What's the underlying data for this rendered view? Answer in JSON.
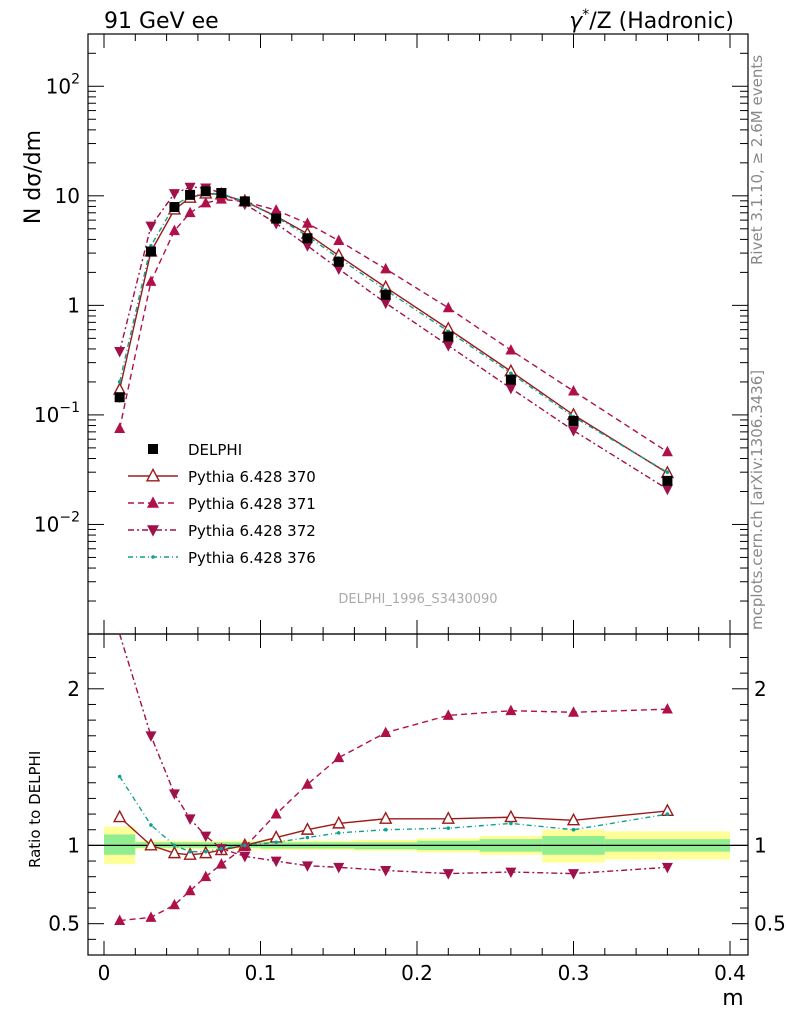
{
  "header": {
    "left_title": "91 GeV ee",
    "right_title_pre": "γ",
    "right_title_sup": "*",
    "right_title_post": "/Z (Hadronic)"
  },
  "side_text": {
    "rivet": "Rivet 3.1.10, ≥ 2.6M events",
    "mcplots": "mcplots.cern.ch [arXiv:1306.3436]"
  },
  "analysis_label": "DELPHI_1996_S3430090",
  "colors": {
    "data": "#000000",
    "p370": "#9b1b1b",
    "p371": "#b0104a",
    "p372": "#a0104a",
    "p376": "#10a090",
    "band_inner": "#90ee90",
    "band_outer": "#ffff99"
  },
  "chart_data": {
    "type": "scatter",
    "xlabel": "m",
    "ylabel": "N dσ/dm",
    "ratio_ylabel": "Ratio to DELPHI",
    "xlim": [
      0,
      0.4
    ],
    "ylim_log": [
      0.001,
      300
    ],
    "ratio_ylim": [
      0.3,
      2.35
    ],
    "y_scale": "log",
    "x_ticks": [
      "0",
      "0.1",
      "0.2",
      "0.3",
      "0.4"
    ],
    "y_ticks": [
      {
        "v": 0.01,
        "base": "10",
        "exp": "−2"
      },
      {
        "v": 0.1,
        "base": "10",
        "exp": "−1"
      },
      {
        "v": 1,
        "base": "1",
        "exp": ""
      },
      {
        "v": 10,
        "base": "10",
        "exp": ""
      },
      {
        "v": 100,
        "base": "10",
        "exp": "2"
      }
    ],
    "ratio_ticks": [
      {
        "v": 0.5,
        "label": "0.5"
      },
      {
        "v": 1,
        "label": "1"
      },
      {
        "v": 2,
        "label": "2"
      }
    ],
    "legend_placement": "middle-left",
    "x": [
      0.01,
      0.03,
      0.045,
      0.055,
      0.065,
      0.075,
      0.09,
      0.11,
      0.13,
      0.15,
      0.18,
      0.22,
      0.26,
      0.3,
      0.36
    ],
    "data_series": {
      "name": "DELPHI",
      "values": [
        0.145,
        3.1,
        7.9,
        10.2,
        11.0,
        10.6,
        8.9,
        6.2,
        4.1,
        2.5,
        1.25,
        0.52,
        0.21,
        0.088,
        0.025
      ],
      "errors": [
        0.015,
        0.15,
        0.3,
        0.3,
        0.3,
        0.3,
        0.2,
        0.15,
        0.1,
        0.08,
        0.05,
        0.025,
        0.012,
        0.006,
        0.002
      ],
      "band_inner": [
        [
          0.0,
          0.02,
          0.94,
          1.07
        ],
        [
          0.02,
          0.04,
          0.985,
          1.02
        ],
        [
          0.04,
          0.1,
          0.985,
          1.02
        ],
        [
          0.1,
          0.16,
          0.98,
          1.02
        ],
        [
          0.16,
          0.2,
          0.975,
          1.02
        ],
        [
          0.2,
          0.24,
          0.97,
          1.03
        ],
        [
          0.24,
          0.28,
          0.96,
          1.04
        ],
        [
          0.28,
          0.32,
          0.94,
          1.06
        ],
        [
          0.32,
          0.4,
          0.96,
          1.04
        ]
      ],
      "band_outer": [
        [
          0.0,
          0.02,
          0.88,
          1.12
        ],
        [
          0.02,
          0.04,
          0.975,
          1.03
        ],
        [
          0.04,
          0.1,
          0.975,
          1.03
        ],
        [
          0.1,
          0.16,
          0.97,
          1.03
        ],
        [
          0.16,
          0.2,
          0.965,
          1.035
        ],
        [
          0.2,
          0.24,
          0.955,
          1.045
        ],
        [
          0.24,
          0.28,
          0.94,
          1.06
        ],
        [
          0.28,
          0.32,
          0.89,
          1.1
        ],
        [
          0.32,
          0.4,
          0.91,
          1.09
        ]
      ]
    },
    "series": [
      {
        "name": "Pythia 6.428 370",
        "marker": "triangle-up-open",
        "dash": "",
        "values": [
          0.17,
          3.1,
          7.5,
          9.6,
          10.5,
          10.3,
          8.9,
          6.5,
          4.5,
          2.85,
          1.46,
          0.61,
          0.25,
          0.1,
          0.0295
        ],
        "ratio": [
          1.18,
          1.0,
          0.95,
          0.94,
          0.95,
          0.97,
          1.0,
          1.05,
          1.1,
          1.14,
          1.17,
          1.17,
          1.18,
          1.16,
          1.22
        ]
      },
      {
        "name": "Pythia 6.428 371",
        "marker": "triangle-up-filled",
        "dash": "6,4",
        "values": [
          0.075,
          1.65,
          4.8,
          7.0,
          8.6,
          9.3,
          8.85,
          7.4,
          5.6,
          3.9,
          2.15,
          0.95,
          0.39,
          0.165,
          0.046
        ],
        "ratio": [
          0.52,
          0.54,
          0.62,
          0.71,
          0.8,
          0.88,
          0.99,
          1.2,
          1.39,
          1.56,
          1.72,
          1.83,
          1.86,
          1.85,
          1.87
        ]
      },
      {
        "name": "Pythia 6.428 372",
        "marker": "triangle-down-filled",
        "dash": "6,3,2,3",
        "values": [
          0.38,
          5.3,
          10.5,
          12.0,
          11.8,
          10.6,
          8.4,
          5.6,
          3.5,
          2.15,
          1.05,
          0.43,
          0.175,
          0.072,
          0.021
        ],
        "ratio": [
          2.35,
          1.7,
          1.33,
          1.17,
          1.06,
          0.98,
          0.93,
          0.9,
          0.87,
          0.86,
          0.84,
          0.82,
          0.83,
          0.82,
          0.86
        ]
      },
      {
        "name": "Pythia 6.428 376",
        "marker": "star",
        "dash": "5,3,1,3",
        "values": [
          0.2,
          3.5,
          8.2,
          9.9,
          10.6,
          10.4,
          8.9,
          6.4,
          4.3,
          2.7,
          1.38,
          0.58,
          0.24,
          0.096,
          0.03
        ],
        "ratio": [
          1.44,
          1.13,
          1.0,
          0.96,
          0.96,
          0.98,
          1.0,
          1.02,
          1.05,
          1.08,
          1.1,
          1.11,
          1.14,
          1.1,
          1.2
        ]
      }
    ]
  }
}
